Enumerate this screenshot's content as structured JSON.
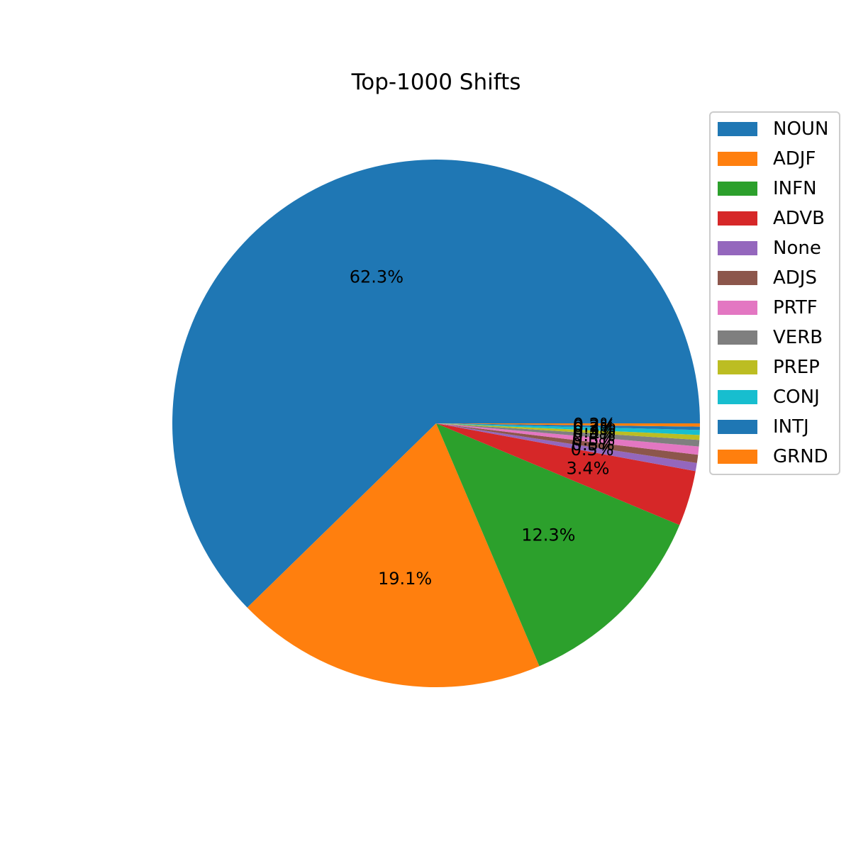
{
  "chart_data": {
    "type": "pie",
    "title": "Top-1000 Shifts",
    "legend_position": "upper-right",
    "start_angle_deg": 0,
    "direction": "counterclockwise",
    "autopct_format": "0.1f%",
    "categories": [
      "NOUN",
      "ADJF",
      "INFN",
      "ADVB",
      "None",
      "ADJS",
      "PRTF",
      "VERB",
      "PREP",
      "CONJ",
      "INTJ",
      "GRND"
    ],
    "values": [
      62.3,
      19.1,
      12.3,
      3.4,
      0.5,
      0.5,
      0.5,
      0.4,
      0.3,
      0.3,
      0.2,
      0.2
    ],
    "labels": [
      "62.3%",
      "19.1%",
      "12.3%",
      "3.4%",
      "0.5%",
      "0.5%",
      "0.5%",
      "0.4%",
      "0.3%",
      "0.3%",
      "0.2%",
      "0.2%"
    ],
    "colors": [
      "#1f77b4",
      "#ff7f0e",
      "#2ca02c",
      "#d62728",
      "#9467bd",
      "#8c564b",
      "#e377c2",
      "#7f7f7f",
      "#bcbd22",
      "#17becf",
      "#1f77b4",
      "#ff7f0e"
    ]
  }
}
